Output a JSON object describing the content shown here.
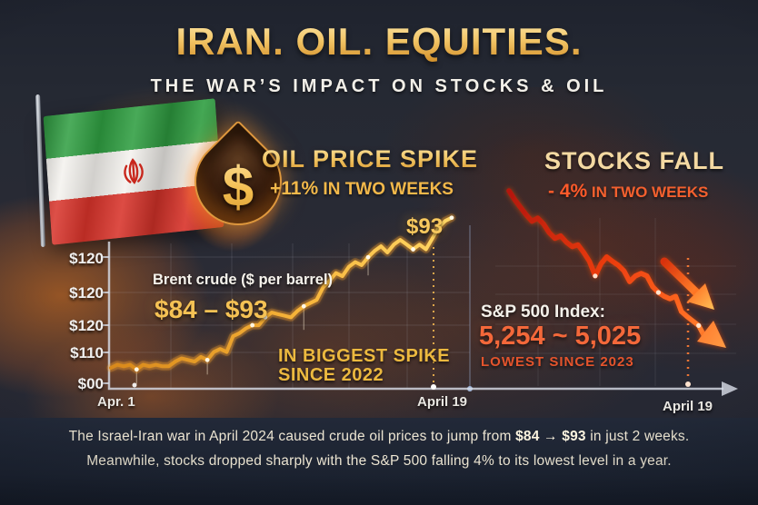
{
  "header": {
    "title": "IRAN. OIL. EQUITIES.",
    "subtitle": "THE WAR’S IMPACT ON STOCKS & OIL"
  },
  "oil_section": {
    "heading": "OIL PRICE SPIKE",
    "change_period": "IN TWO WEEKS",
    "dollar_symbol": "$"
  },
  "stocks_section": {
    "heading": "STOCKS FALL",
    "change_period": "IN TWO WEEKS"
  },
  "footer": {
    "line1_pre": "The Israel-Iran war in April 2024 caused crude oil prices to jump from ",
    "line1_bold": "$84 → $93",
    "line1_post": " in just 2 weeks.",
    "line2": "Meanwhile, stocks dropped sharply with the S&P 500 falling 4% to its lowest level in a year."
  },
  "colors": {
    "gold": "#f5c254",
    "orange_red": "#ff5a2a",
    "cream_text": "#ece5d2",
    "background_navy": "#1c2331"
  },
  "chart_data": [
    {
      "type": "line",
      "id": "brent",
      "series_label": "Brent crude ($ per barrel)",
      "range_label": "$84 – $93",
      "peak_label": "$93",
      "change_pct": "+11%",
      "annotation_line1": "IN BIGGEST SPIKE",
      "annotation_line2": "SINCE 2022",
      "x_ticks": [
        "Apr. 1",
        "April 19"
      ],
      "y_tick_labels": [
        "$120",
        "$120",
        "$120",
        "$110",
        "$00"
      ],
      "start_value": 84,
      "end_value": 93,
      "values": [
        83.9,
        84.1,
        84.0,
        84.1,
        83.8,
        84.1,
        84.0,
        84.1,
        84.0,
        84.0,
        84.3,
        84.5,
        84.4,
        84.3,
        84.6,
        84.4,
        84.9,
        85.1,
        84.9,
        85.9,
        86.1,
        86.4,
        86.6,
        86.6,
        87.1,
        87.4,
        87.3,
        87.2,
        87.1,
        87.5,
        87.8,
        88.0,
        88.2,
        89.0,
        89.4,
        89.9,
        89.7,
        90.3,
        90.6,
        90.4,
        90.9,
        91.3,
        91.6,
        91.2,
        91.7,
        92.0,
        91.7,
        91.4,
        91.7,
        91.4,
        92.1,
        92.8,
        93.2,
        93.4
      ]
    },
    {
      "type": "line",
      "id": "sp500",
      "series_label": "S&P 500 Index:",
      "range_label": "5,254 ~ 5,025",
      "annotation": "LOWEST SINCE 2023",
      "change_pct": "- 4%",
      "x_ticks": [
        "April 19"
      ],
      "start_value": 5254,
      "end_value": 5025,
      "values": [
        5254,
        5240,
        5228,
        5216,
        5206,
        5211,
        5202,
        5188,
        5179,
        5183,
        5173,
        5166,
        5169,
        5157,
        5143,
        5120,
        5139,
        5150,
        5143,
        5137,
        5128,
        5111,
        5120,
        5124,
        5120,
        5103,
        5094,
        5088,
        5084,
        5088,
        5064,
        5056,
        5049,
        5042,
        5025
      ]
    }
  ]
}
